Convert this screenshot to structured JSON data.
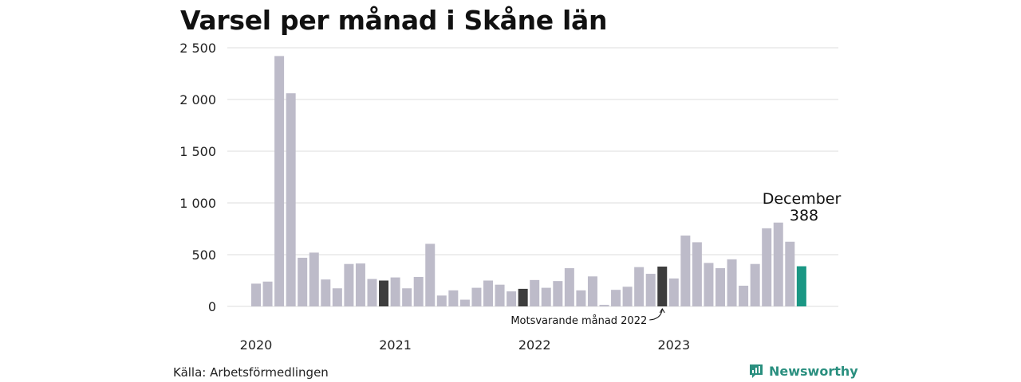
{
  "title": "Varsel per månad i Skåne län",
  "source": "Källa: Arbetsförmedlingen",
  "brand": {
    "name": "Newsworthy",
    "icon": "newsworthy-logo-icon",
    "color": "#2a8f7f"
  },
  "colors": {
    "bar": "#bdbbc9",
    "comparison": "#3d3d3d",
    "highlight": "#1a9784",
    "grid": "#dedede"
  },
  "chart_data": {
    "type": "bar",
    "ylim": [
      0,
      2500
    ],
    "y_ticks": [
      {
        "value": 0,
        "label": "0"
      },
      {
        "value": 500,
        "label": "500"
      },
      {
        "value": 1000,
        "label": "1 000"
      },
      {
        "value": 1500,
        "label": "1 500"
      },
      {
        "value": 2000,
        "label": "2 000"
      },
      {
        "value": 2500,
        "label": "2 500"
      }
    ],
    "x_labels": [
      {
        "index": 0,
        "label": "2020"
      },
      {
        "index": 12,
        "label": "2021"
      },
      {
        "index": 24,
        "label": "2022"
      },
      {
        "index": 36,
        "label": "2023"
      }
    ],
    "values": [
      220,
      240,
      2420,
      2060,
      470,
      520,
      260,
      175,
      410,
      415,
      265,
      250,
      280,
      175,
      285,
      605,
      105,
      155,
      65,
      180,
      250,
      210,
      145,
      170,
      255,
      180,
      245,
      370,
      155,
      290,
      15,
      160,
      190,
      380,
      315,
      385,
      270,
      685,
      620,
      420,
      370,
      455,
      200,
      410,
      755,
      810,
      625,
      388
    ],
    "comparison_indices": [
      11,
      23,
      35
    ],
    "highlight_index": 47,
    "comparison_note": "Motsvarande månad 2022",
    "callout": {
      "label": "December",
      "value": "388"
    },
    "grid": true
  }
}
